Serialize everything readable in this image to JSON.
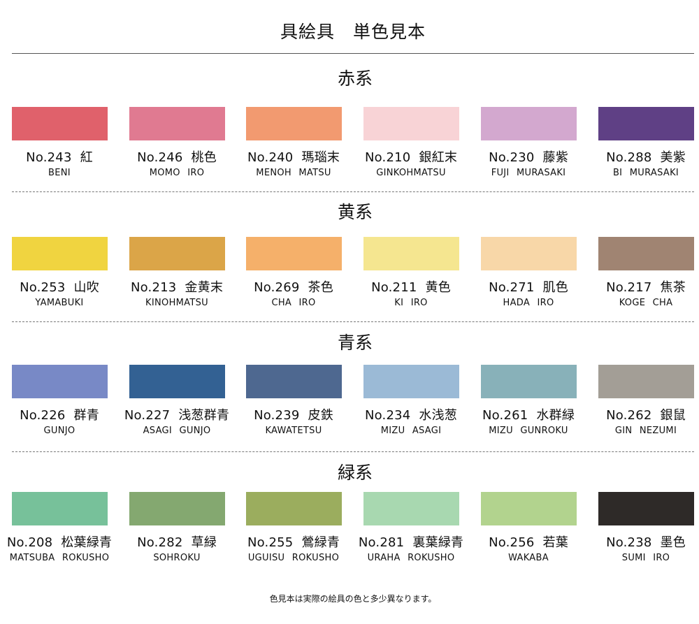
{
  "title": "具絵具　単色見本",
  "sections": [
    {
      "title": "赤系",
      "items": [
        {
          "no": "No.243",
          "jp": "紅",
          "roma": "BENI",
          "color": "#E0616B"
        },
        {
          "no": "No.246",
          "jp": "桃色",
          "roma": "MOMO IRO",
          "color": "#E07A91"
        },
        {
          "no": "No.240",
          "jp": "瑪瑙末",
          "roma": "MENOH MATSU",
          "color": "#F29A70"
        },
        {
          "no": "No.210",
          "jp": "銀紅末",
          "roma": "GINKOHMATSU",
          "color": "#F8D3D6"
        },
        {
          "no": "No.230",
          "jp": "藤紫",
          "roma": "FUJI MURASAKI",
          "color": "#D3A8CF"
        },
        {
          "no": "No.288",
          "jp": "美紫",
          "roma": "BI MURASAKI",
          "color": "#5F4085"
        }
      ]
    },
    {
      "title": "黄系",
      "items": [
        {
          "no": "No.253",
          "jp": "山吹",
          "roma": "YAMABUKI",
          "color": "#F0D440"
        },
        {
          "no": "No.213",
          "jp": "金黄末",
          "roma": "KINOHMATSU",
          "color": "#DBA548"
        },
        {
          "no": "No.269",
          "jp": "茶色",
          "roma": "CHA IRO",
          "color": "#F5B06A"
        },
        {
          "no": "No.211",
          "jp": "黄色",
          "roma": "KI IRO",
          "color": "#F5E690"
        },
        {
          "no": "No.271",
          "jp": "肌色",
          "roma": "HADA IRO",
          "color": "#F8D7A8"
        },
        {
          "no": "No.217",
          "jp": "焦茶",
          "roma": "KOGE CHA",
          "color": "#A08472"
        }
      ]
    },
    {
      "title": "青系",
      "items": [
        {
          "no": "No.226",
          "jp": "群青",
          "roma": "GUNJO",
          "color": "#7889C6"
        },
        {
          "no": "No.227",
          "jp": "浅葱群青",
          "roma": "ASAGI GUNJO",
          "color": "#336193"
        },
        {
          "no": "No.239",
          "jp": "皮鉄",
          "roma": "KAWATETSU",
          "color": "#4E6890"
        },
        {
          "no": "No.234",
          "jp": "水浅葱",
          "roma": "MIZU ASAGI",
          "color": "#9BBAD6"
        },
        {
          "no": "No.261",
          "jp": "水群緑",
          "roma": "MIZU GUNROKU",
          "color": "#88B1B9"
        },
        {
          "no": "No.262",
          "jp": "銀鼠",
          "roma": "GIN NEZUMI",
          "color": "#A39E96"
        }
      ]
    },
    {
      "title": "緑系",
      "items": [
        {
          "no": "No.208",
          "jp": "松葉緑青",
          "roma": "MATSUBA ROKUSHO",
          "color": "#77C19A"
        },
        {
          "no": "No.282",
          "jp": "草緑",
          "roma": "SOHROKU",
          "color": "#84A870"
        },
        {
          "no": "No.255",
          "jp": "鶯緑青",
          "roma": "UGUISU ROKUSHO",
          "color": "#9BAD5E"
        },
        {
          "no": "No.281",
          "jp": "裏葉緑青",
          "roma": "URAHA ROKUSHO",
          "color": "#A8D8B0"
        },
        {
          "no": "No.256",
          "jp": "若葉",
          "roma": "WAKABA",
          "color": "#B2D38E"
        },
        {
          "no": "No.238",
          "jp": "墨色",
          "roma": "SUMI IRO",
          "color": "#2E2A28"
        }
      ]
    }
  ],
  "note": "色見本は実際の絵具の色と多少異なります。"
}
